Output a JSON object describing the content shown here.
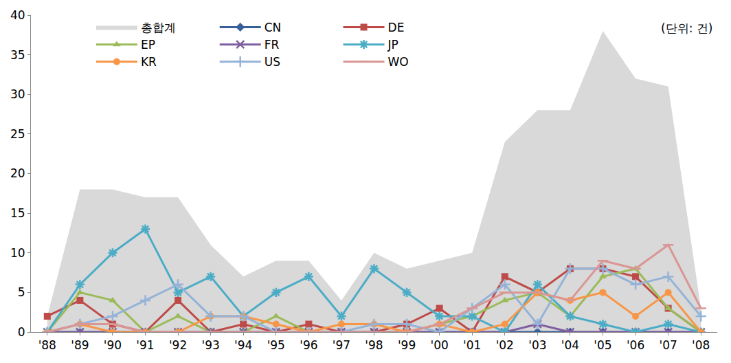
{
  "chart_data": {
    "type": "line",
    "categories": [
      "'88",
      "'89",
      "'90",
      "'91",
      "'92",
      "'93",
      "'94",
      "'95",
      "'96",
      "'97",
      "'98",
      "'99",
      "'00",
      "'01",
      "'02",
      "'03",
      "'04",
      "'05",
      "'06",
      "'07",
      "'08"
    ],
    "series": [
      {
        "name": "총합계",
        "type": "area",
        "color": "#d9d9d9",
        "values": [
          2,
          18,
          18,
          17,
          17,
          11,
          7,
          9,
          9,
          4,
          10,
          8,
          9,
          10,
          24,
          28,
          28,
          38,
          32,
          31,
          3
        ]
      },
      {
        "name": "CN",
        "type": "line",
        "color": "#365f9c",
        "marker": "diamond",
        "values": [
          0,
          0,
          0,
          0,
          0,
          0,
          0,
          0,
          0,
          0,
          0,
          0,
          0,
          0,
          0,
          0,
          0,
          0,
          0,
          0,
          0
        ]
      },
      {
        "name": "DE",
        "type": "line",
        "color": "#be4b48",
        "marker": "square",
        "values": [
          2,
          4,
          1,
          0,
          4,
          0,
          1,
          0,
          1,
          0,
          0,
          1,
          3,
          0,
          7,
          5,
          8,
          8,
          7,
          3,
          0
        ]
      },
      {
        "name": "EP",
        "type": "line",
        "color": "#9bbb59",
        "marker": "triangle-up",
        "values": [
          0,
          5,
          4,
          0,
          2,
          0,
          0,
          2,
          0,
          0,
          0,
          0,
          1,
          2,
          4,
          5,
          2,
          7,
          8,
          3,
          0
        ]
      },
      {
        "name": "FR",
        "type": "line",
        "color": "#7f5fa0",
        "marker": "x-thin-open",
        "values": [
          0,
          0,
          0,
          0,
          0,
          0,
          0,
          0,
          0,
          0,
          0,
          0,
          0,
          0,
          0,
          1,
          0,
          0,
          0,
          0,
          0
        ]
      },
      {
        "name": "JP",
        "type": "line",
        "color": "#4bacc6",
        "marker": "asterisk-open",
        "values": [
          0,
          6,
          10,
          13,
          5,
          7,
          2,
          5,
          7,
          2,
          8,
          5,
          2,
          2,
          0,
          6,
          2,
          1,
          0,
          1,
          0
        ]
      },
      {
        "name": "KR",
        "type": "line",
        "color": "#f79646",
        "marker": "circle",
        "values": [
          0,
          1,
          0,
          0,
          0,
          2,
          2,
          1,
          0,
          1,
          1,
          0,
          1,
          0,
          1,
          5,
          4,
          5,
          2,
          5,
          0
        ]
      },
      {
        "name": "US",
        "type": "line",
        "color": "#95b3d7",
        "marker": "cross-thin-open",
        "values": [
          0,
          1,
          2,
          4,
          6,
          2,
          2,
          0,
          0,
          0,
          1,
          1,
          0,
          3,
          6,
          1,
          8,
          8,
          6,
          7,
          2
        ]
      },
      {
        "name": "WO",
        "type": "line",
        "color": "#d99694",
        "marker": "line-ew-open",
        "values": [
          0,
          1,
          1,
          0,
          0,
          0,
          0,
          0,
          0,
          0,
          0,
          0,
          1,
          3,
          5,
          5,
          4,
          9,
          8,
          11,
          3
        ]
      }
    ],
    "annotations": [
      {
        "text": "(단위: 건)"
      }
    ],
    "ylim": [
      0,
      40
    ],
    "yticks": [
      0,
      5,
      10,
      15,
      20,
      25,
      30,
      35,
      40
    ],
    "grid": false,
    "legend": "upper left"
  }
}
